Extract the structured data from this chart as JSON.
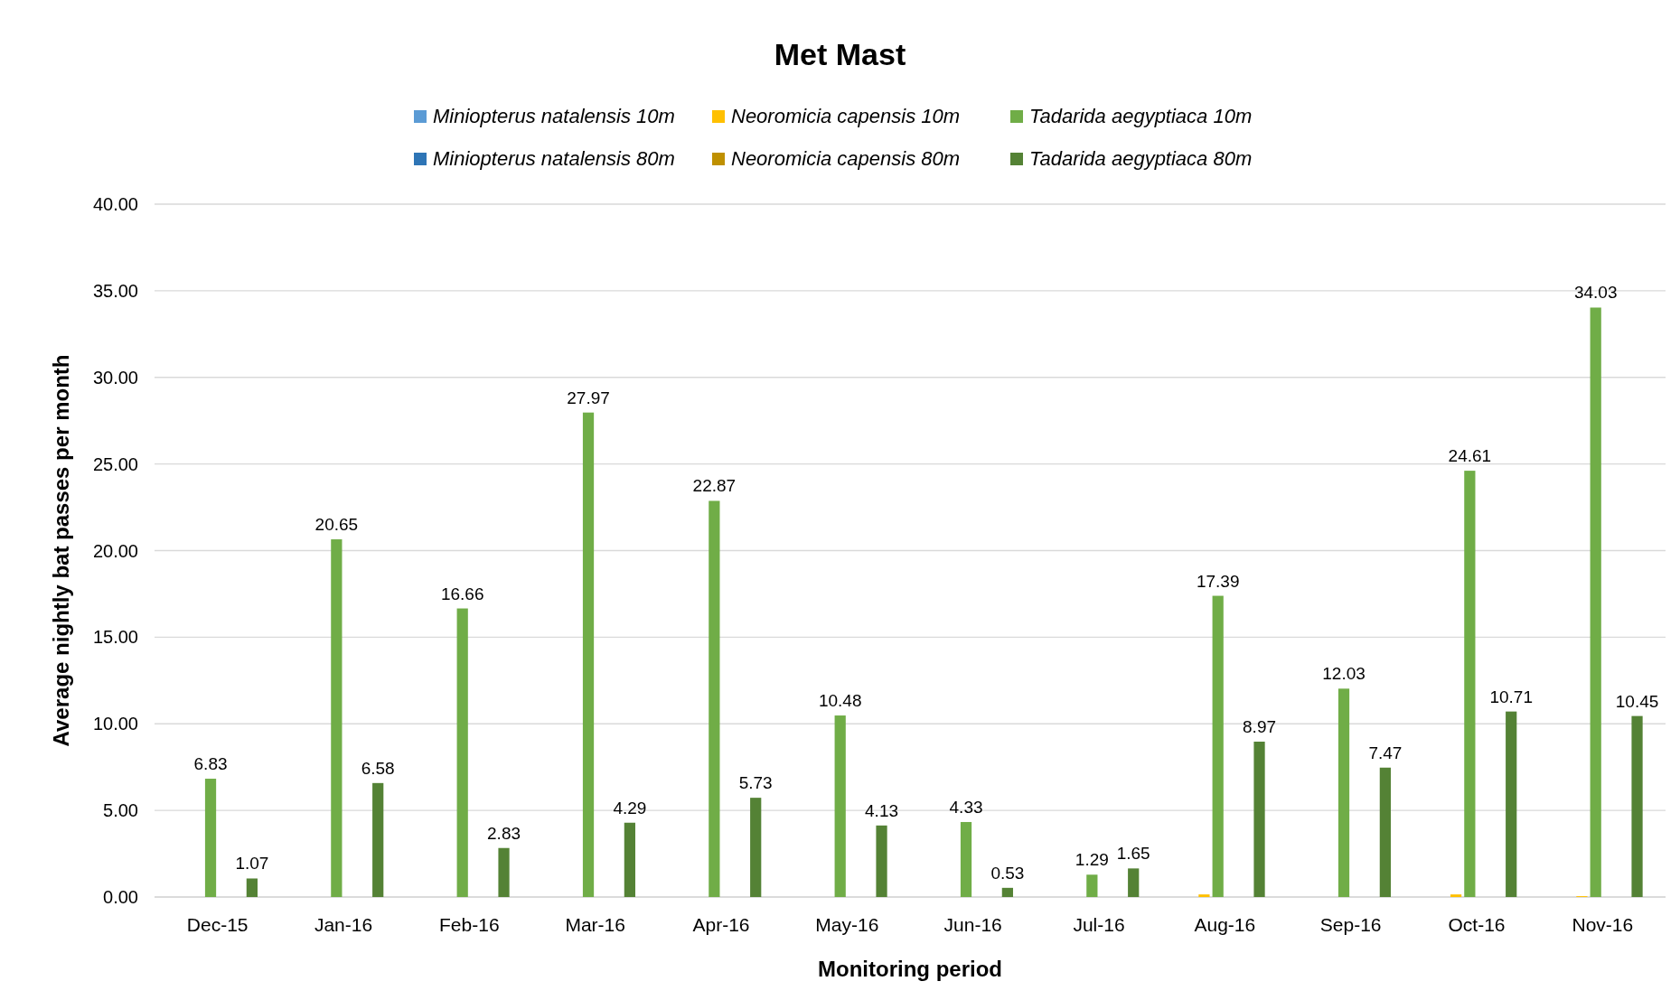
{
  "chart_data": {
    "type": "bar",
    "title": "Met Mast",
    "xlabel": "Monitoring period",
    "ylabel": "Average nightly bat passes per month",
    "categories": [
      "Dec-15",
      "Jan-16",
      "Feb-16",
      "Mar-16",
      "Apr-16",
      "May-16",
      "Jun-16",
      "Jul-16",
      "Aug-16",
      "Sep-16",
      "Oct-16",
      "Nov-16"
    ],
    "series": [
      {
        "name": "Miniopterus natalensis 10m",
        "color": "#5b9bd5",
        "values": [
          0,
          0,
          0,
          0,
          0,
          0,
          0,
          0,
          0,
          0,
          0,
          0
        ]
      },
      {
        "name": "Neoromicia capensis 10m",
        "color": "#ffc000",
        "values": [
          0,
          0,
          0,
          0,
          0,
          0,
          0,
          0,
          0.15,
          0,
          0.15,
          0.05
        ]
      },
      {
        "name": "Tadarida aegyptiaca 10m",
        "color": "#70ad47",
        "values": [
          6.83,
          20.65,
          16.66,
          27.97,
          22.87,
          10.48,
          4.33,
          1.29,
          17.39,
          12.03,
          24.61,
          34.03
        ],
        "value_labels": [
          "6.83",
          "20.65",
          "16.66",
          "27.97",
          "22.87",
          "10.48",
          "4.33",
          "1.29",
          "17.39",
          "12.03",
          "24.61",
          "34.03"
        ]
      },
      {
        "name": "Miniopterus natalensis 80m",
        "color": "#2e75b6",
        "values": [
          0,
          0,
          0,
          0,
          0,
          0,
          0,
          0,
          0,
          0,
          0,
          0
        ]
      },
      {
        "name": "Neoromicia capensis 80m",
        "color": "#bf9000",
        "values": [
          0,
          0,
          0,
          0,
          0,
          0,
          0,
          0,
          0,
          0,
          0,
          0
        ]
      },
      {
        "name": "Tadarida aegyptiaca 80m",
        "color": "#548235",
        "values": [
          1.07,
          6.58,
          2.83,
          4.29,
          5.73,
          4.13,
          0.53,
          1.65,
          8.97,
          7.47,
          10.71,
          10.45
        ],
        "value_labels": [
          "1.07",
          "6.58",
          "2.83",
          "4.29",
          "5.73",
          "4.13",
          "0.53",
          "1.65",
          "8.97",
          "7.47",
          "10.71",
          "10.45"
        ]
      }
    ],
    "ylim": [
      0,
      40
    ],
    "yticks": [
      {
        "value": 0,
        "label": "0.00"
      },
      {
        "value": 5,
        "label": "5.00"
      },
      {
        "value": 10,
        "label": "10.00"
      },
      {
        "value": 15,
        "label": "15.00"
      },
      {
        "value": 20,
        "label": "20.00"
      },
      {
        "value": 25,
        "label": "25.00"
      },
      {
        "value": 30,
        "label": "30.00"
      },
      {
        "value": 35,
        "label": "35.00"
      },
      {
        "value": 40,
        "label": "40.00"
      }
    ],
    "grid": "y",
    "legend": "top"
  }
}
